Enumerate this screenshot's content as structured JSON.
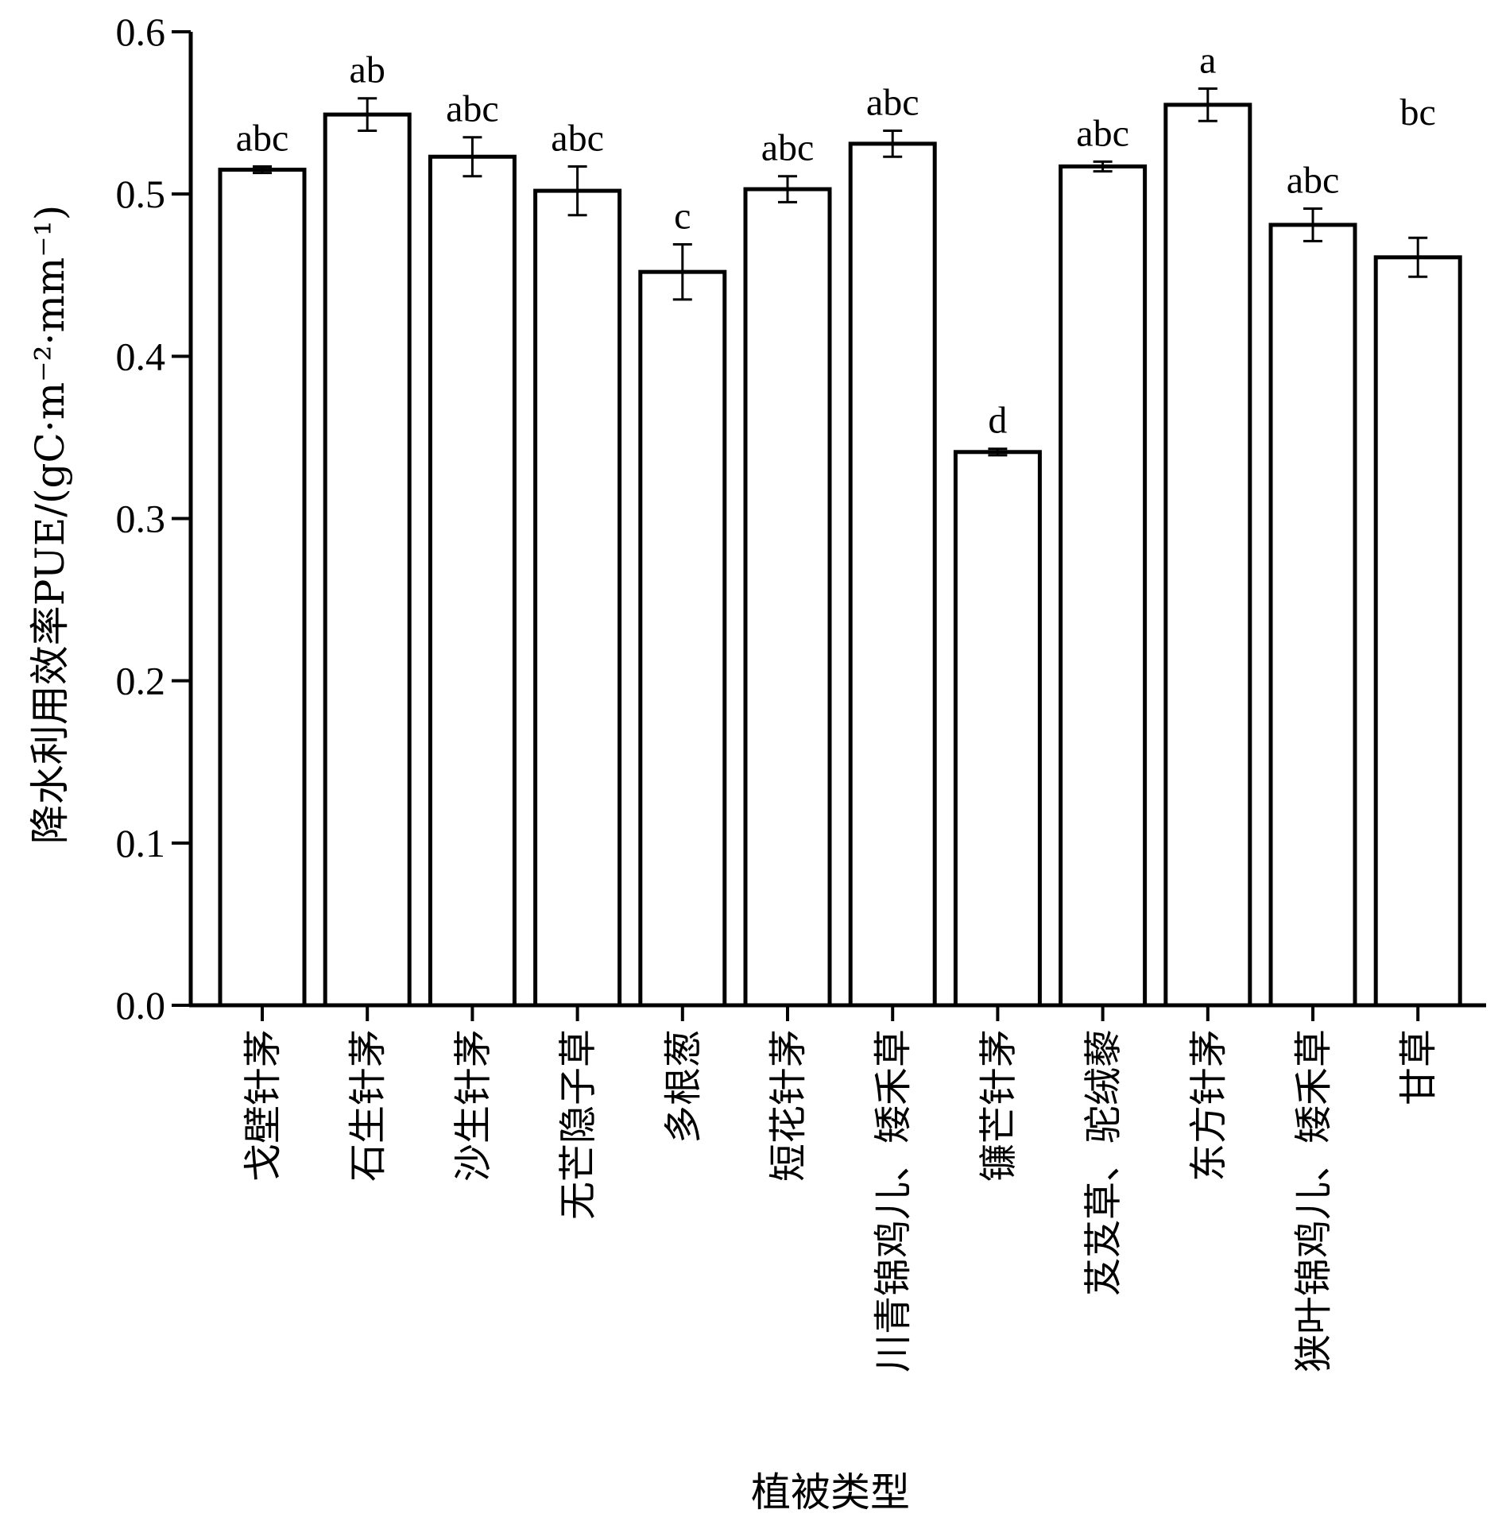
{
  "chart_data": {
    "type": "bar",
    "xlabel": "植被类型",
    "ylabel": "降水利用效率PUE/(gC·m⁻²·mm⁻¹)",
    "ylim": [
      0.0,
      0.6
    ],
    "yticks": [
      "0.0",
      "0.1",
      "0.2",
      "0.3",
      "0.4",
      "0.5",
      "0.6"
    ],
    "grid": false,
    "categories": [
      "戈壁针茅",
      "石生针茅",
      "沙生针茅",
      "无芒隐子草",
      "多根葱",
      "短花针茅",
      "川青锦鸡儿、矮禾草",
      "镰芒针茅",
      "芨芨草、驼绒藜",
      "东方针茅",
      "狭叶锦鸡儿、矮禾草",
      "甘草"
    ],
    "values": [
      0.515,
      0.549,
      0.523,
      0.502,
      0.452,
      0.503,
      0.531,
      0.341,
      0.517,
      0.555,
      0.481,
      0.461
    ],
    "errors": [
      0.002,
      0.01,
      0.012,
      0.015,
      0.017,
      0.008,
      0.008,
      0.002,
      0.003,
      0.01,
      0.01,
      0.012
    ],
    "significance": [
      "abc",
      "ab",
      "abc",
      "abc",
      "c",
      "abc",
      "abc",
      "d",
      "abc",
      "a",
      "abc",
      "bc"
    ]
  }
}
